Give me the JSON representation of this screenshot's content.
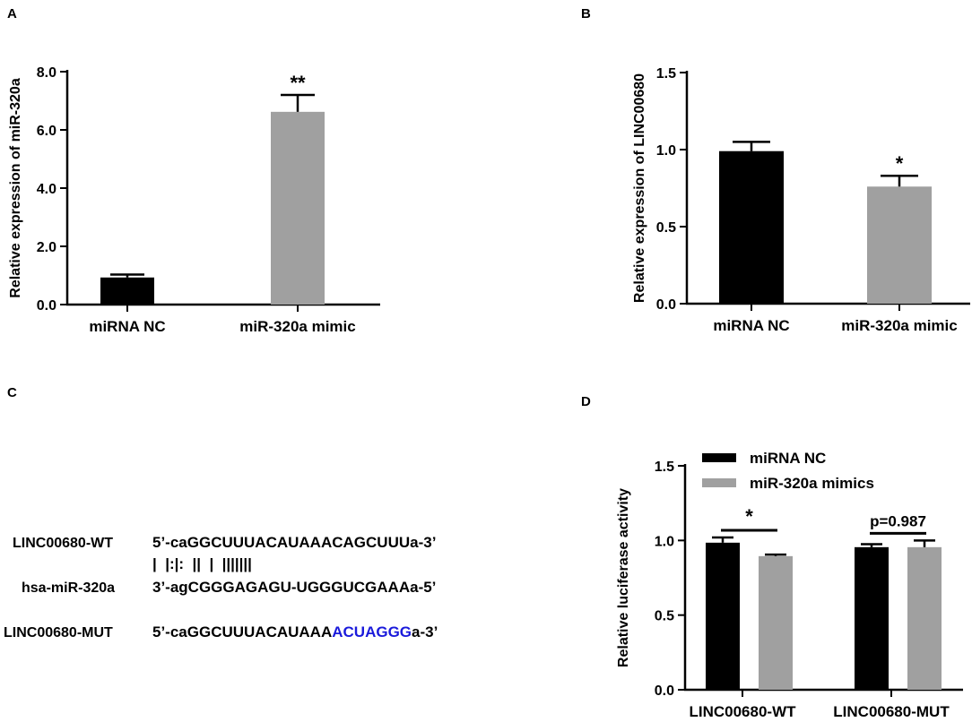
{
  "panels": {
    "A": {
      "letter": "A"
    },
    "B": {
      "letter": "B"
    },
    "C": {
      "letter": "C"
    },
    "D": {
      "letter": "D"
    }
  },
  "chart_data": [
    {
      "panel": "A",
      "type": "bar",
      "categories": [
        "miRNA NC",
        "miR-320a mimic"
      ],
      "values": [
        0.93,
        6.62
      ],
      "errors": [
        0.1,
        0.58
      ],
      "significance": [
        "",
        "**"
      ],
      "ylabel": "Relative expression of miR-320a",
      "ylim": [
        0,
        8
      ],
      "yticks": [
        "0.0",
        "2.0",
        "4.0",
        "6.0",
        "8.0"
      ],
      "colors": [
        "#000000",
        "#a0a0a0"
      ],
      "grid": false
    },
    {
      "panel": "B",
      "type": "bar",
      "categories": [
        "miRNA NC",
        "miR-320a mimic"
      ],
      "values": [
        0.99,
        0.76
      ],
      "errors": [
        0.06,
        0.07
      ],
      "significance": [
        "",
        "*"
      ],
      "ylabel": "Relative expression of LINC00680",
      "ylim": [
        0,
        1.5
      ],
      "yticks": [
        "0.0",
        "0.5",
        "1.0",
        "1.5"
      ],
      "colors": [
        "#000000",
        "#a0a0a0"
      ],
      "grid": false
    },
    {
      "panel": "D",
      "type": "bar",
      "categories": [
        "LINC00680-WT",
        "LINC00680-MUT"
      ],
      "series": [
        {
          "name": "miRNA NC",
          "values": [
            0.985,
            0.955
          ],
          "errors": [
            0.035,
            0.02
          ],
          "color": "#000000"
        },
        {
          "name": "miR-320a mimics",
          "values": [
            0.895,
            0.955
          ],
          "errors": [
            0.01,
            0.045
          ],
          "color": "#a0a0a0"
        }
      ],
      "comparisons": [
        "*",
        "p=0.987"
      ],
      "ylabel": "Relative luciferase activity",
      "ylim": [
        0,
        1.5
      ],
      "yticks": [
        "0.0",
        "0.5",
        "1.0",
        "1.5"
      ],
      "legend": "top-left",
      "grid": false
    }
  ],
  "sequences": {
    "rows": [
      {
        "label": "LINC00680-WT",
        "prefix": "5’-caGGCUUUACAUAAACAGCUUUa-3’",
        "highlight": "",
        "suffix": ""
      },
      {
        "label": "",
        "prefix": "|  |:|:  ||  |  |||||||",
        "highlight": "",
        "suffix": ""
      },
      {
        "label": "hsa-miR-320a",
        "prefix": "3’-agCGGGAGAGU-UGGGUCGAAAa-5’",
        "highlight": "",
        "suffix": ""
      },
      {
        "label": "LINC00680-MUT",
        "prefix": "5’-caGGCUUUACAUAAA",
        "highlight": "ACUAGGG",
        "suffix": "a-3’"
      }
    ]
  }
}
